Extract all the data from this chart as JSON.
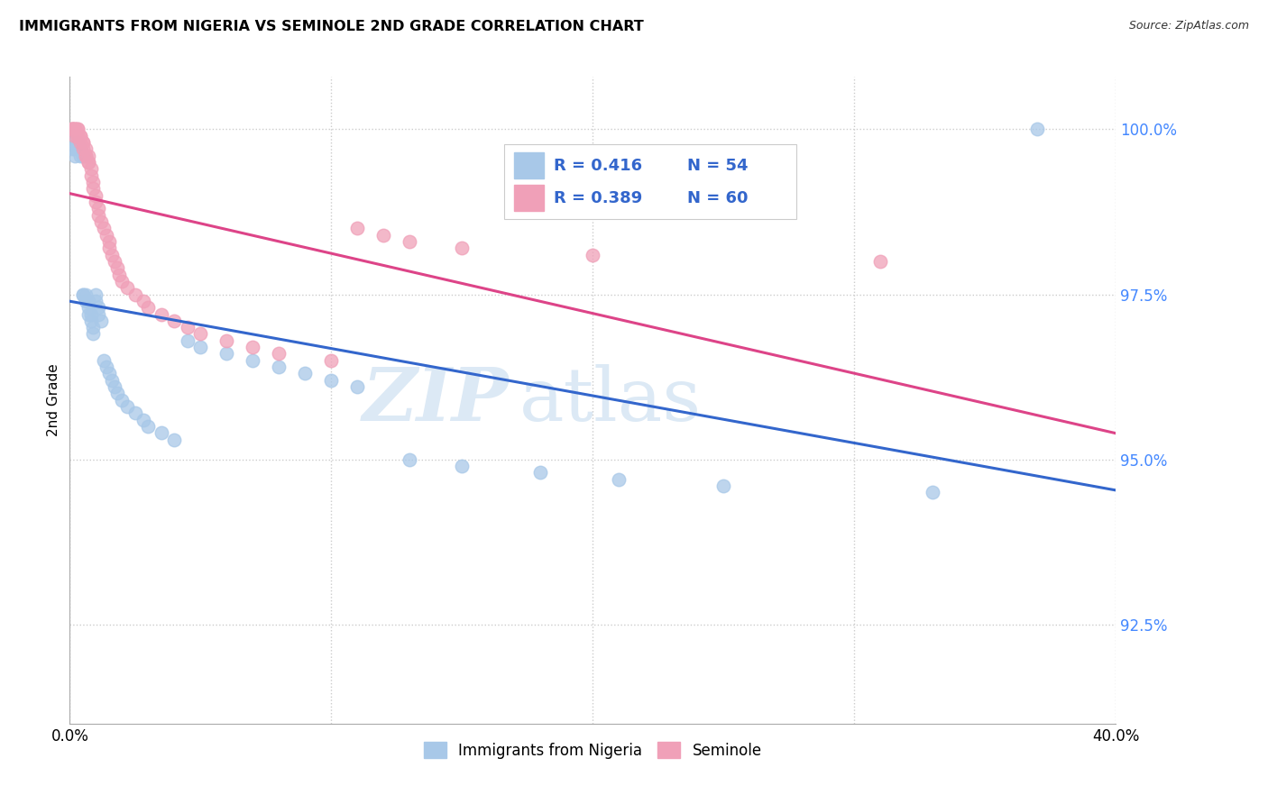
{
  "title": "IMMIGRANTS FROM NIGERIA VS SEMINOLE 2ND GRADE CORRELATION CHART",
  "source": "Source: ZipAtlas.com",
  "ylabel": "2nd Grade",
  "ylabel_right_labels": [
    "100.0%",
    "97.5%",
    "95.0%",
    "92.5%"
  ],
  "ylabel_right_values": [
    1.0,
    0.975,
    0.95,
    0.925
  ],
  "xmin": 0.0,
  "xmax": 0.4,
  "ymin": 0.91,
  "ymax": 1.008,
  "legend_blue_r": "R = 0.416",
  "legend_blue_n": "N = 54",
  "legend_pink_r": "R = 0.389",
  "legend_pink_n": "N = 60",
  "legend_label_blue": "Immigrants from Nigeria",
  "legend_label_pink": "Seminole",
  "blue_color": "#a8c8e8",
  "pink_color": "#f0a0b8",
  "blue_line_color": "#3366cc",
  "pink_line_color": "#dd4488",
  "r_n_color": "#3366cc",
  "watermark_color": "#dce9f5",
  "grid_color": "#cccccc",
  "right_axis_color": "#4488ff",
  "blue_x": [
    0.001,
    0.001,
    0.002,
    0.002,
    0.003,
    0.003,
    0.003,
    0.004,
    0.004,
    0.005,
    0.005,
    0.005,
    0.006,
    0.006,
    0.007,
    0.007,
    0.007,
    0.008,
    0.008,
    0.009,
    0.009,
    0.01,
    0.01,
    0.011,
    0.011,
    0.012,
    0.013,
    0.014,
    0.015,
    0.016,
    0.017,
    0.018,
    0.02,
    0.022,
    0.025,
    0.028,
    0.03,
    0.035,
    0.04,
    0.045,
    0.05,
    0.06,
    0.07,
    0.08,
    0.09,
    0.1,
    0.11,
    0.13,
    0.15,
    0.18,
    0.21,
    0.25,
    0.33,
    0.37
  ],
  "blue_y": [
    0.998,
    0.997,
    0.997,
    0.996,
    0.998,
    0.997,
    0.997,
    0.997,
    0.996,
    0.996,
    0.975,
    0.975,
    0.975,
    0.974,
    0.974,
    0.973,
    0.972,
    0.972,
    0.971,
    0.97,
    0.969,
    0.975,
    0.974,
    0.973,
    0.972,
    0.971,
    0.965,
    0.964,
    0.963,
    0.962,
    0.961,
    0.96,
    0.959,
    0.958,
    0.957,
    0.956,
    0.955,
    0.954,
    0.953,
    0.968,
    0.967,
    0.966,
    0.965,
    0.964,
    0.963,
    0.962,
    0.961,
    0.95,
    0.949,
    0.948,
    0.947,
    0.946,
    0.945,
    1.0
  ],
  "pink_x": [
    0.001,
    0.001,
    0.001,
    0.001,
    0.002,
    0.002,
    0.002,
    0.002,
    0.003,
    0.003,
    0.003,
    0.003,
    0.004,
    0.004,
    0.004,
    0.005,
    0.005,
    0.005,
    0.006,
    0.006,
    0.006,
    0.007,
    0.007,
    0.007,
    0.008,
    0.008,
    0.009,
    0.009,
    0.01,
    0.01,
    0.011,
    0.011,
    0.012,
    0.013,
    0.014,
    0.015,
    0.015,
    0.016,
    0.017,
    0.018,
    0.019,
    0.02,
    0.022,
    0.025,
    0.028,
    0.03,
    0.035,
    0.04,
    0.045,
    0.05,
    0.06,
    0.07,
    0.08,
    0.1,
    0.11,
    0.12,
    0.13,
    0.15,
    0.2,
    0.31
  ],
  "pink_y": [
    1.0,
    1.0,
    1.0,
    1.0,
    1.0,
    1.0,
    1.0,
    0.999,
    1.0,
    1.0,
    0.999,
    0.999,
    0.999,
    0.999,
    0.998,
    0.998,
    0.998,
    0.997,
    0.997,
    0.996,
    0.996,
    0.996,
    0.995,
    0.995,
    0.994,
    0.993,
    0.992,
    0.991,
    0.99,
    0.989,
    0.988,
    0.987,
    0.986,
    0.985,
    0.984,
    0.983,
    0.982,
    0.981,
    0.98,
    0.979,
    0.978,
    0.977,
    0.976,
    0.975,
    0.974,
    0.973,
    0.972,
    0.971,
    0.97,
    0.969,
    0.968,
    0.967,
    0.966,
    0.965,
    0.985,
    0.984,
    0.983,
    0.982,
    0.981,
    0.98
  ]
}
